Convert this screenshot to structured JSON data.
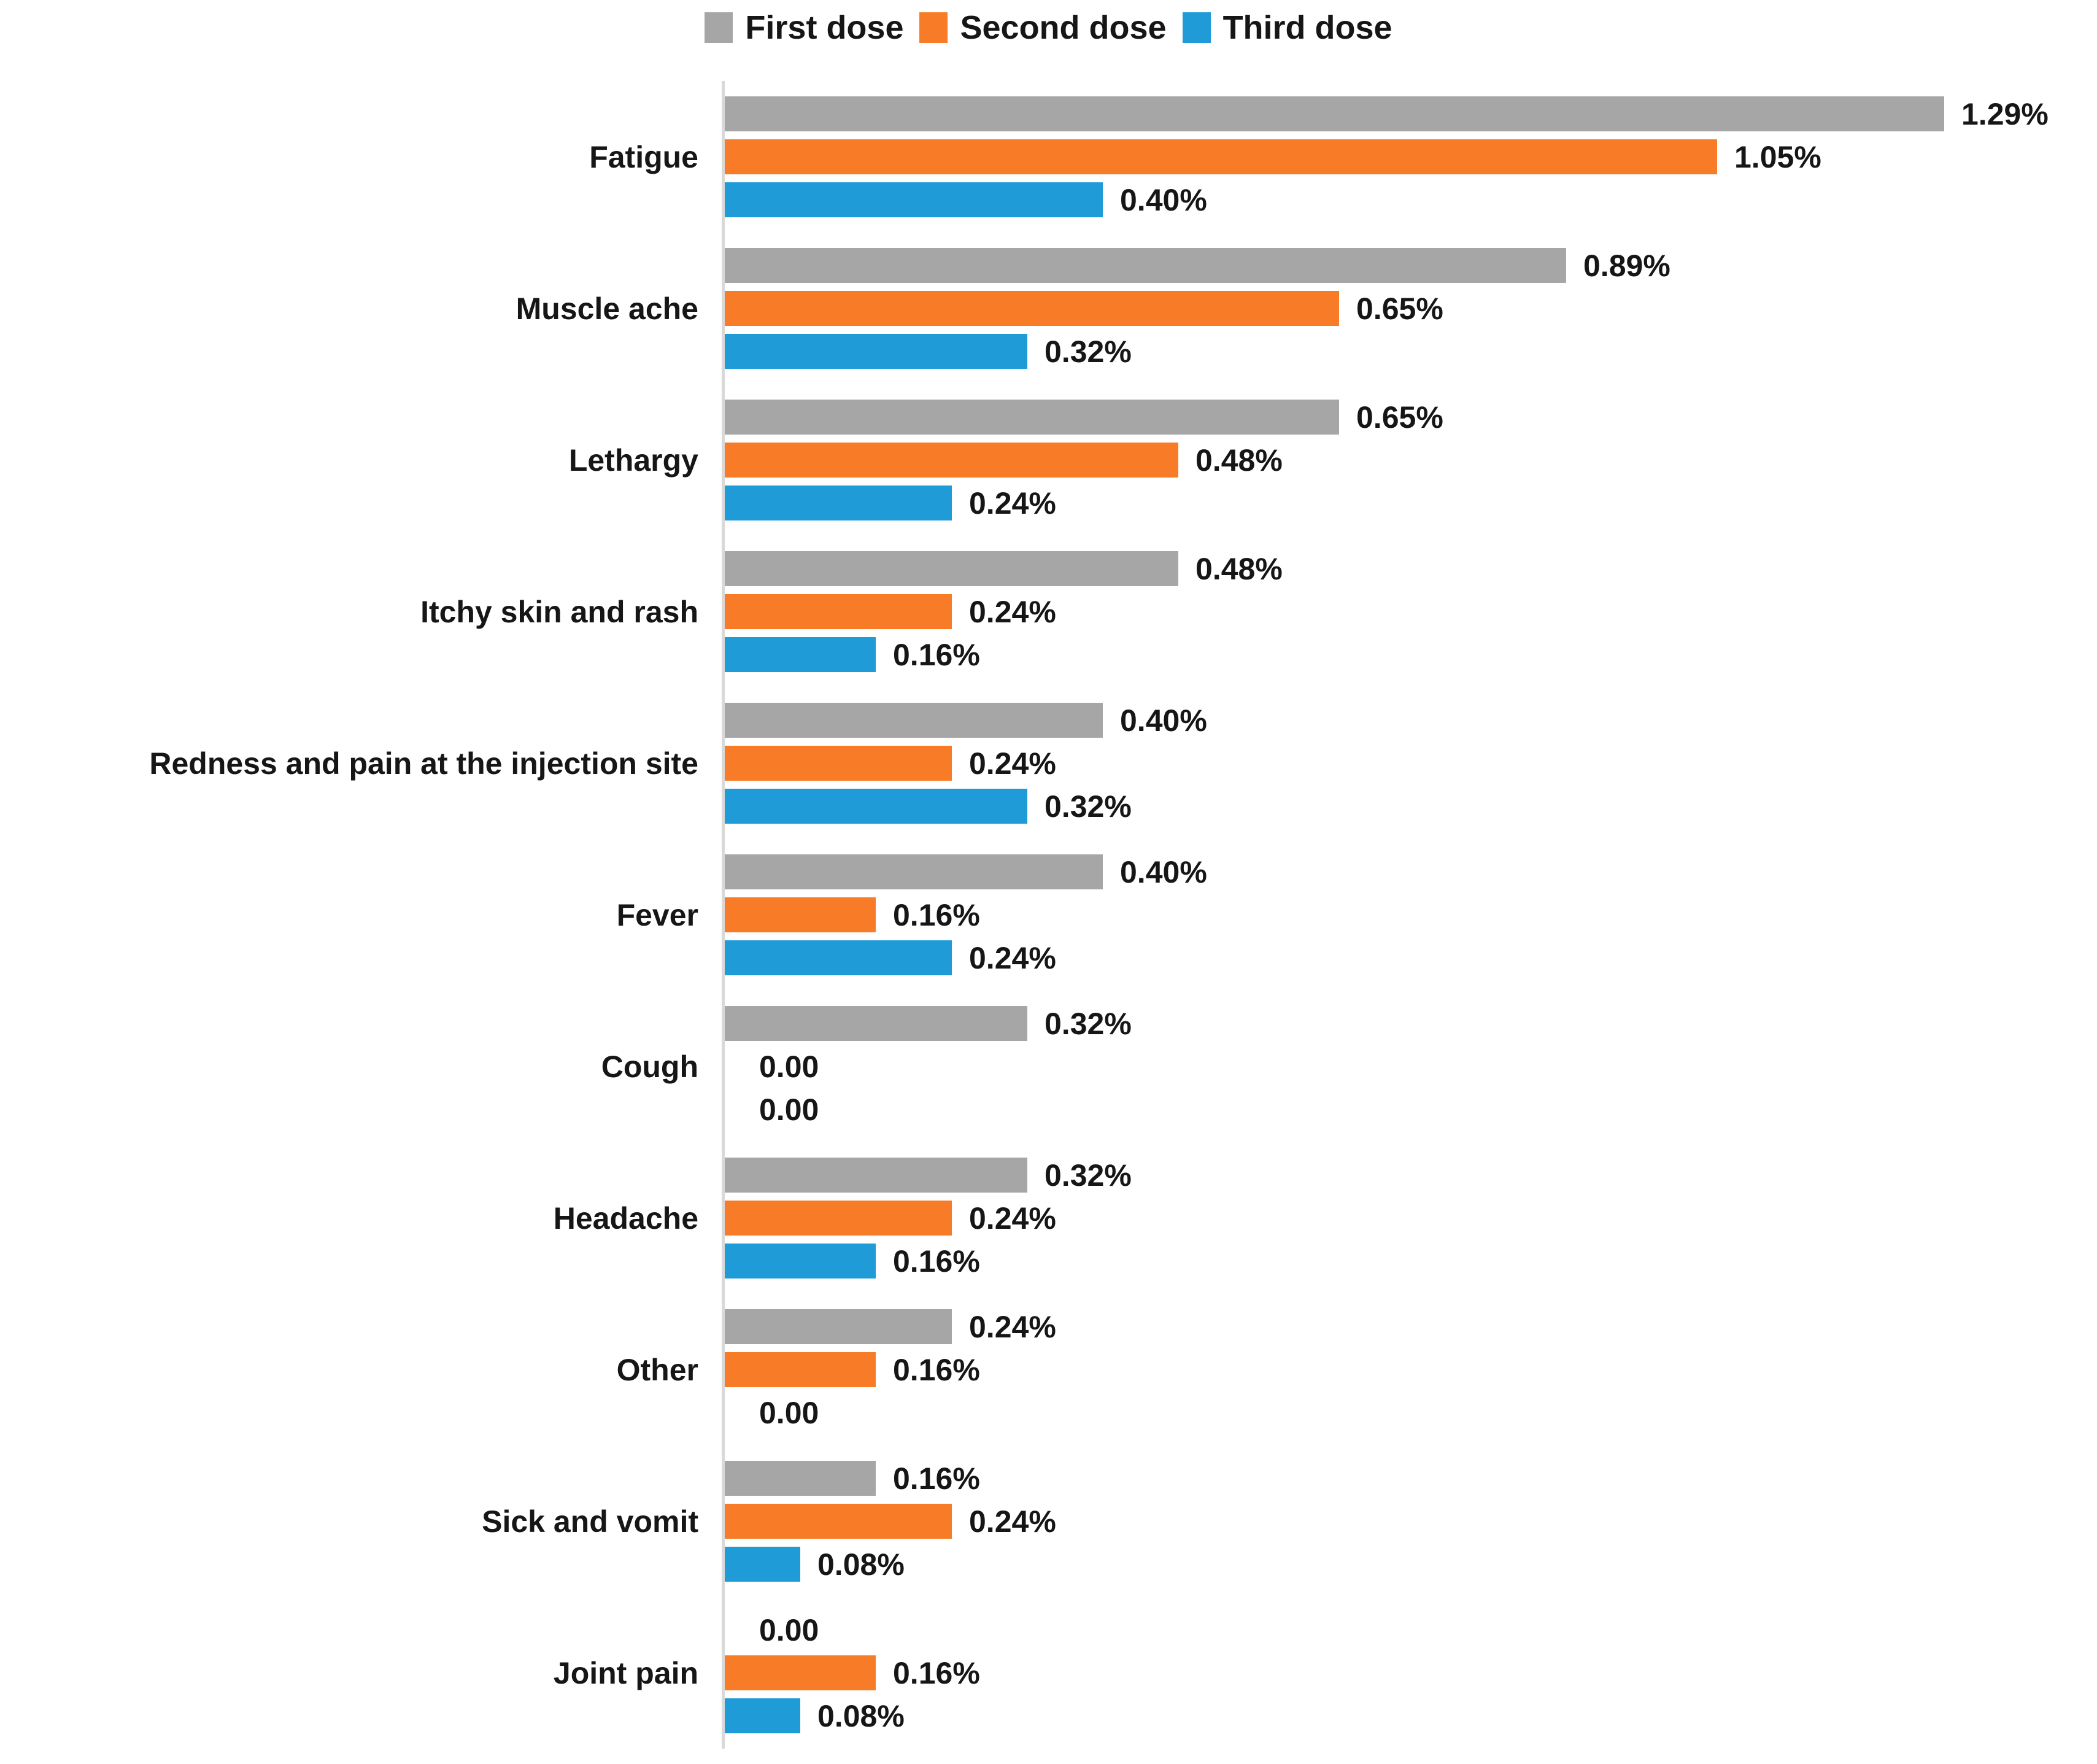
{
  "chart_data": {
    "type": "bar",
    "orientation": "horizontal",
    "title": "",
    "xlabel": "",
    "ylabel": "",
    "legend_position": "top",
    "grid": false,
    "xlim": [
      0,
      1.35
    ],
    "axis_line_color": "#d9d9d9",
    "text_color": "#161616",
    "categories": [
      "Fatigue",
      "Muscle ache",
      "Lethargy",
      "Itchy skin and rash",
      "Redness and pain at the injection site",
      "Fever",
      "Cough",
      "Headache",
      "Other",
      "Sick and vomit",
      "Joint pain"
    ],
    "series": [
      {
        "name": "First dose",
        "color": "#a6a6a6",
        "values": [
          1.29,
          0.89,
          0.65,
          0.48,
          0.4,
          0.4,
          0.32,
          0.32,
          0.24,
          0.16,
          0.0
        ],
        "labels": [
          "1.29%",
          "0.89%",
          "0.65%",
          "0.48%",
          "0.40%",
          "0.40%",
          "0.32%",
          "0.32%",
          "0.24%",
          "0.16%",
          "0.00"
        ]
      },
      {
        "name": "Second dose",
        "color": "#f87c28",
        "values": [
          1.05,
          0.65,
          0.48,
          0.24,
          0.24,
          0.16,
          0.0,
          0.24,
          0.16,
          0.24,
          0.16
        ],
        "labels": [
          "1.05%",
          "0.65%",
          "0.48%",
          "0.24%",
          "0.24%",
          "0.16%",
          "0.00",
          "0.24%",
          "0.16%",
          "0.24%",
          "0.16%"
        ]
      },
      {
        "name": "Third dose",
        "color": "#1f9bd7",
        "values": [
          0.4,
          0.32,
          0.24,
          0.16,
          0.32,
          0.24,
          0.0,
          0.16,
          0.0,
          0.08,
          0.08
        ],
        "labels": [
          "0.40%",
          "0.32%",
          "0.24%",
          "0.16%",
          "0.32%",
          "0.24%",
          "0.00",
          "0.16%",
          "0.00",
          "0.08%",
          "0.08%"
        ]
      }
    ]
  }
}
